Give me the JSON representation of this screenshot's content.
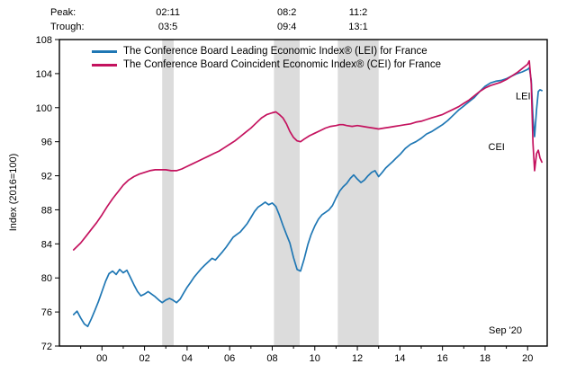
{
  "chart_data": {
    "type": "line",
    "title": "",
    "ylabel": "Index (2016=100)",
    "footnote": "Sep '20",
    "ylim": [
      72,
      108
    ],
    "ytick_step": 4,
    "xlim": [
      1998.0,
      2020.92
    ],
    "xticks": [
      2000,
      2002,
      2004,
      2006,
      2008,
      2010,
      2012,
      2014,
      2016,
      2018,
      2020
    ],
    "xtick_labels": [
      "00",
      "02",
      "04",
      "06",
      "08",
      "10",
      "12",
      "14",
      "16",
      "18",
      "20"
    ],
    "grid": false,
    "legend_position": "top-left-inside",
    "band_color": "#dcdcdc",
    "frame_color": "#000000",
    "recession_bands": [
      [
        2002.83,
        2003.37
      ],
      [
        2008.08,
        2009.29
      ],
      [
        2011.08,
        2013.0
      ]
    ],
    "annotations": {
      "peak_label": "Peak:",
      "trough_label": "Trough:",
      "events": [
        {
          "peak": "02:11",
          "trough": "03:5"
        },
        {
          "peak": "08:2",
          "trough": "09:4"
        },
        {
          "peak": "11:2",
          "trough": "13:1"
        }
      ]
    },
    "end_labels": [
      {
        "text": "LEI",
        "x": 2019.44,
        "y": 101.0
      },
      {
        "text": "CEI",
        "x": 2018.15,
        "y": 95.0
      }
    ],
    "series": [
      {
        "name": "The Conference Board Leading Economic Index® (LEI) for France",
        "short": "LEI",
        "color": "#1f77b4",
        "points": [
          [
            1998.67,
            75.7
          ],
          [
            1998.83,
            76.1
          ],
          [
            1999.0,
            75.3
          ],
          [
            1999.17,
            74.6
          ],
          [
            1999.33,
            74.3
          ],
          [
            1999.5,
            75.2
          ],
          [
            1999.67,
            76.2
          ],
          [
            1999.83,
            77.2
          ],
          [
            2000.0,
            78.4
          ],
          [
            2000.17,
            79.6
          ],
          [
            2000.33,
            80.5
          ],
          [
            2000.5,
            80.8
          ],
          [
            2000.67,
            80.4
          ],
          [
            2000.83,
            81.0
          ],
          [
            2001.0,
            80.6
          ],
          [
            2001.17,
            80.9
          ],
          [
            2001.33,
            80.1
          ],
          [
            2001.5,
            79.2
          ],
          [
            2001.67,
            78.4
          ],
          [
            2001.83,
            77.9
          ],
          [
            2002.0,
            78.1
          ],
          [
            2002.17,
            78.4
          ],
          [
            2002.33,
            78.1
          ],
          [
            2002.5,
            77.8
          ],
          [
            2002.67,
            77.4
          ],
          [
            2002.83,
            77.1
          ],
          [
            2003.0,
            77.4
          ],
          [
            2003.17,
            77.6
          ],
          [
            2003.33,
            77.4
          ],
          [
            2003.5,
            77.1
          ],
          [
            2003.67,
            77.5
          ],
          [
            2003.83,
            78.2
          ],
          [
            2004.0,
            78.9
          ],
          [
            2004.17,
            79.5
          ],
          [
            2004.33,
            80.1
          ],
          [
            2004.5,
            80.6
          ],
          [
            2004.67,
            81.1
          ],
          [
            2004.83,
            81.5
          ],
          [
            2005.0,
            81.9
          ],
          [
            2005.17,
            82.3
          ],
          [
            2005.33,
            82.1
          ],
          [
            2005.5,
            82.6
          ],
          [
            2005.67,
            83.1
          ],
          [
            2005.83,
            83.6
          ],
          [
            2006.0,
            84.2
          ],
          [
            2006.17,
            84.8
          ],
          [
            2006.33,
            85.1
          ],
          [
            2006.5,
            85.4
          ],
          [
            2006.67,
            85.9
          ],
          [
            2006.83,
            86.4
          ],
          [
            2007.0,
            87.1
          ],
          [
            2007.17,
            87.8
          ],
          [
            2007.33,
            88.3
          ],
          [
            2007.5,
            88.6
          ],
          [
            2007.67,
            88.9
          ],
          [
            2007.83,
            88.6
          ],
          [
            2008.0,
            88.8
          ],
          [
            2008.17,
            88.4
          ],
          [
            2008.33,
            87.4
          ],
          [
            2008.5,
            86.2
          ],
          [
            2008.67,
            85.1
          ],
          [
            2008.83,
            84.1
          ],
          [
            2009.0,
            82.4
          ],
          [
            2009.17,
            81.0
          ],
          [
            2009.33,
            80.8
          ],
          [
            2009.5,
            82.2
          ],
          [
            2009.67,
            83.9
          ],
          [
            2009.83,
            85.1
          ],
          [
            2010.0,
            86.1
          ],
          [
            2010.17,
            86.9
          ],
          [
            2010.33,
            87.4
          ],
          [
            2010.5,
            87.7
          ],
          [
            2010.67,
            88.0
          ],
          [
            2010.83,
            88.5
          ],
          [
            2011.0,
            89.4
          ],
          [
            2011.17,
            90.2
          ],
          [
            2011.33,
            90.7
          ],
          [
            2011.5,
            91.1
          ],
          [
            2011.67,
            91.7
          ],
          [
            2011.83,
            92.1
          ],
          [
            2012.0,
            91.6
          ],
          [
            2012.17,
            91.2
          ],
          [
            2012.33,
            91.5
          ],
          [
            2012.5,
            92.0
          ],
          [
            2012.67,
            92.4
          ],
          [
            2012.83,
            92.6
          ],
          [
            2013.0,
            91.9
          ],
          [
            2013.17,
            92.4
          ],
          [
            2013.33,
            92.9
          ],
          [
            2013.5,
            93.3
          ],
          [
            2013.67,
            93.7
          ],
          [
            2013.83,
            94.1
          ],
          [
            2014.0,
            94.5
          ],
          [
            2014.25,
            95.2
          ],
          [
            2014.5,
            95.7
          ],
          [
            2014.75,
            96.0
          ],
          [
            2015.0,
            96.4
          ],
          [
            2015.25,
            96.9
          ],
          [
            2015.5,
            97.2
          ],
          [
            2015.75,
            97.6
          ],
          [
            2016.0,
            98.0
          ],
          [
            2016.25,
            98.5
          ],
          [
            2016.5,
            99.1
          ],
          [
            2016.75,
            99.7
          ],
          [
            2017.0,
            100.2
          ],
          [
            2017.25,
            100.7
          ],
          [
            2017.5,
            101.2
          ],
          [
            2017.75,
            101.9
          ],
          [
            2018.0,
            102.5
          ],
          [
            2018.25,
            102.9
          ],
          [
            2018.5,
            103.1
          ],
          [
            2018.75,
            103.2
          ],
          [
            2019.0,
            103.4
          ],
          [
            2019.25,
            103.7
          ],
          [
            2019.5,
            104.0
          ],
          [
            2019.75,
            104.2
          ],
          [
            2020.0,
            104.5
          ],
          [
            2020.08,
            104.7
          ],
          [
            2020.17,
            103.2
          ],
          [
            2020.25,
            98.8
          ],
          [
            2020.33,
            96.6
          ],
          [
            2020.42,
            99.8
          ],
          [
            2020.5,
            101.9
          ],
          [
            2020.58,
            102.1
          ],
          [
            2020.67,
            102.0
          ]
        ]
      },
      {
        "name": "The Conference Board Coincident Economic Index® (CEI) for France",
        "short": "CEI",
        "color": "#c4125e",
        "points": [
          [
            1998.67,
            83.3
          ],
          [
            1999.0,
            84.1
          ],
          [
            1999.25,
            84.9
          ],
          [
            1999.5,
            85.7
          ],
          [
            1999.75,
            86.5
          ],
          [
            2000.0,
            87.4
          ],
          [
            2000.25,
            88.4
          ],
          [
            2000.5,
            89.3
          ],
          [
            2000.75,
            90.1
          ],
          [
            2001.0,
            90.9
          ],
          [
            2001.25,
            91.5
          ],
          [
            2001.5,
            91.9
          ],
          [
            2001.75,
            92.2
          ],
          [
            2002.0,
            92.4
          ],
          [
            2002.25,
            92.6
          ],
          [
            2002.5,
            92.7
          ],
          [
            2002.75,
            92.7
          ],
          [
            2003.0,
            92.7
          ],
          [
            2003.25,
            92.6
          ],
          [
            2003.5,
            92.6
          ],
          [
            2003.75,
            92.8
          ],
          [
            2004.0,
            93.1
          ],
          [
            2004.25,
            93.4
          ],
          [
            2004.5,
            93.7
          ],
          [
            2004.75,
            94.0
          ],
          [
            2005.0,
            94.3
          ],
          [
            2005.25,
            94.6
          ],
          [
            2005.5,
            94.9
          ],
          [
            2005.75,
            95.3
          ],
          [
            2006.0,
            95.7
          ],
          [
            2006.25,
            96.1
          ],
          [
            2006.5,
            96.6
          ],
          [
            2006.75,
            97.1
          ],
          [
            2007.0,
            97.6
          ],
          [
            2007.25,
            98.2
          ],
          [
            2007.5,
            98.8
          ],
          [
            2007.75,
            99.2
          ],
          [
            2008.0,
            99.4
          ],
          [
            2008.17,
            99.5
          ],
          [
            2008.33,
            99.2
          ],
          [
            2008.5,
            98.8
          ],
          [
            2008.67,
            98.1
          ],
          [
            2008.83,
            97.2
          ],
          [
            2009.0,
            96.5
          ],
          [
            2009.17,
            96.1
          ],
          [
            2009.33,
            96.0
          ],
          [
            2009.5,
            96.3
          ],
          [
            2009.75,
            96.7
          ],
          [
            2010.0,
            97.0
          ],
          [
            2010.25,
            97.3
          ],
          [
            2010.5,
            97.6
          ],
          [
            2010.75,
            97.8
          ],
          [
            2011.0,
            97.9
          ],
          [
            2011.17,
            98.0
          ],
          [
            2011.33,
            98.0
          ],
          [
            2011.5,
            97.9
          ],
          [
            2011.75,
            97.8
          ],
          [
            2012.0,
            97.9
          ],
          [
            2012.25,
            97.8
          ],
          [
            2012.5,
            97.7
          ],
          [
            2012.75,
            97.6
          ],
          [
            2013.0,
            97.5
          ],
          [
            2013.25,
            97.6
          ],
          [
            2013.5,
            97.7
          ],
          [
            2013.75,
            97.8
          ],
          [
            2014.0,
            97.9
          ],
          [
            2014.25,
            98.0
          ],
          [
            2014.5,
            98.1
          ],
          [
            2014.75,
            98.3
          ],
          [
            2015.0,
            98.4
          ],
          [
            2015.25,
            98.6
          ],
          [
            2015.5,
            98.8
          ],
          [
            2015.75,
            99.0
          ],
          [
            2016.0,
            99.2
          ],
          [
            2016.25,
            99.5
          ],
          [
            2016.5,
            99.8
          ],
          [
            2016.75,
            100.1
          ],
          [
            2017.0,
            100.5
          ],
          [
            2017.25,
            100.9
          ],
          [
            2017.5,
            101.4
          ],
          [
            2017.75,
            101.9
          ],
          [
            2018.0,
            102.3
          ],
          [
            2018.25,
            102.6
          ],
          [
            2018.5,
            102.8
          ],
          [
            2018.75,
            103.0
          ],
          [
            2019.0,
            103.3
          ],
          [
            2019.25,
            103.7
          ],
          [
            2019.5,
            104.1
          ],
          [
            2019.75,
            104.6
          ],
          [
            2020.0,
            105.1
          ],
          [
            2020.08,
            105.5
          ],
          [
            2020.17,
            102.8
          ],
          [
            2020.25,
            95.8
          ],
          [
            2020.33,
            92.6
          ],
          [
            2020.42,
            94.6
          ],
          [
            2020.5,
            95.0
          ],
          [
            2020.58,
            94.1
          ],
          [
            2020.67,
            93.6
          ]
        ]
      }
    ]
  }
}
